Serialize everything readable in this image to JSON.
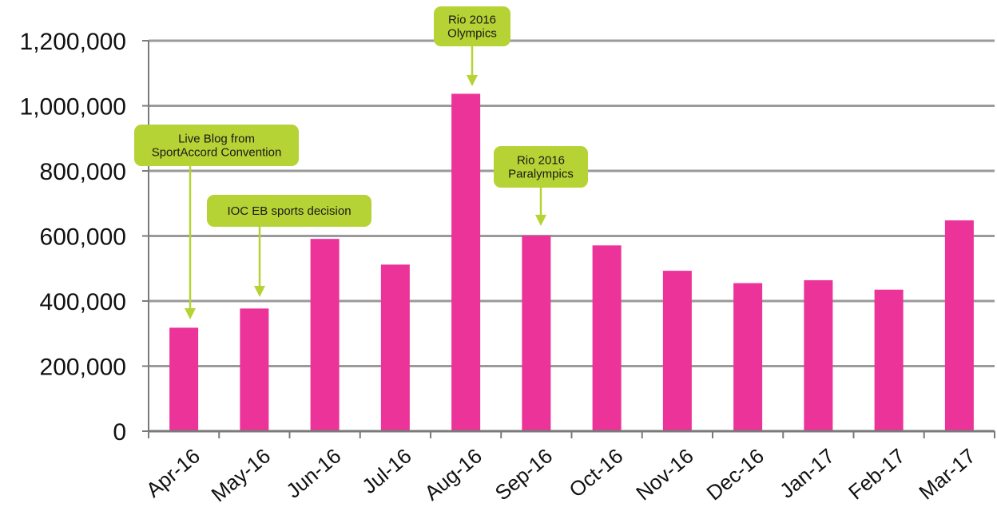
{
  "chart_data": {
    "type": "bar",
    "title": "",
    "xlabel": "",
    "ylabel": "",
    "categories": [
      "Apr-16",
      "May-16",
      "Jun-16",
      "Jul-16",
      "Aug-16",
      "Sep-16",
      "Oct-16",
      "Nov-16",
      "Dec-16",
      "Jan-17",
      "Feb-17",
      "Mar-17"
    ],
    "values": [
      318000,
      377000,
      591000,
      512000,
      1037000,
      601000,
      571000,
      493000,
      455000,
      464000,
      435000,
      648000
    ],
    "ylim": [
      0,
      1200000
    ],
    "yticks": [
      "0",
      "200,000",
      "400,000",
      "600,000",
      "800,000",
      "1,000,000",
      "1,200,000"
    ],
    "grid": true,
    "legend": "none",
    "bar_color": "#ec3399",
    "grid_color": "#9a9a9a",
    "axis_color": "#7a7a7a",
    "annotations": [
      {
        "category": "Apr-16",
        "lines": [
          "Live Blog from",
          "SportAccord Convention"
        ]
      },
      {
        "category": "May-16",
        "lines": [
          "IOC EB sports decision"
        ]
      },
      {
        "category": "Aug-16",
        "lines": [
          "Rio 2016",
          "Olympics"
        ]
      },
      {
        "category": "Sep-16",
        "lines": [
          "Rio 2016",
          "Paralympics"
        ]
      }
    ],
    "annotation_color": "#b5d334"
  }
}
